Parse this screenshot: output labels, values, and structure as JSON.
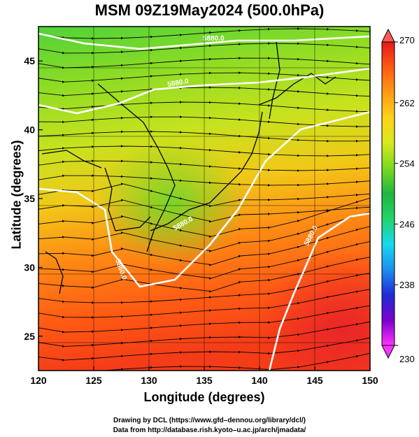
{
  "title": "MSM 09Z19May2024 (500.0hPa)",
  "chart_data": {
    "type": "heatmap",
    "title": "MSM 09Z19May2024 (500.0hPa)",
    "xlabel": "Longitude (degrees)",
    "ylabel": "Latitude  (degrees)",
    "xlim": [
      120,
      150
    ],
    "ylim": [
      22.5,
      47.5
    ],
    "x_ticks": [
      120,
      125,
      130,
      135,
      140,
      145,
      150
    ],
    "y_ticks": [
      25,
      30,
      35,
      40,
      45
    ],
    "colorbar": {
      "min": 230,
      "max": 270,
      "ticks": [
        230,
        238,
        246,
        254,
        262,
        270
      ],
      "colors": [
        "#ff33ff",
        "#7b00cc",
        "#1e2bd6",
        "#1b8ff0",
        "#16d9ee",
        "#22d46a",
        "#20b640",
        "#7bd820",
        "#d8e81e",
        "#ffd21a",
        "#ff9a15",
        "#ff5a12",
        "#e21a1a"
      ]
    },
    "contour_labels": [
      "5880.0",
      "5880.0",
      "5860.0",
      "5880.0",
      "5880.0"
    ],
    "grid": true,
    "field_samples": [
      {
        "lon": 121,
        "lat": 47,
        "value": 259
      },
      {
        "lon": 135,
        "lat": 47,
        "value": 259
      },
      {
        "lon": 149,
        "lat": 47,
        "value": 261
      },
      {
        "lon": 121,
        "lat": 40,
        "value": 263
      },
      {
        "lon": 135,
        "lat": 40,
        "value": 258
      },
      {
        "lon": 149,
        "lat": 40,
        "value": 262
      },
      {
        "lon": 131,
        "lat": 36,
        "value": 260
      },
      {
        "lon": 121,
        "lat": 33,
        "value": 265
      },
      {
        "lon": 140,
        "lat": 33,
        "value": 264
      },
      {
        "lon": 149,
        "lat": 33,
        "value": 265
      },
      {
        "lon": 121,
        "lat": 26,
        "value": 266
      },
      {
        "lon": 135,
        "lat": 26,
        "value": 267
      },
      {
        "lon": 149,
        "lat": 26,
        "value": 268
      }
    ]
  },
  "credits": {
    "line1": "Drawing by DCL (https://www.gfd–dennou.org/library/dcl/)",
    "line2": "Data from http://database.rish.kyoto–u.ac.jp/arch/jmadata/"
  }
}
